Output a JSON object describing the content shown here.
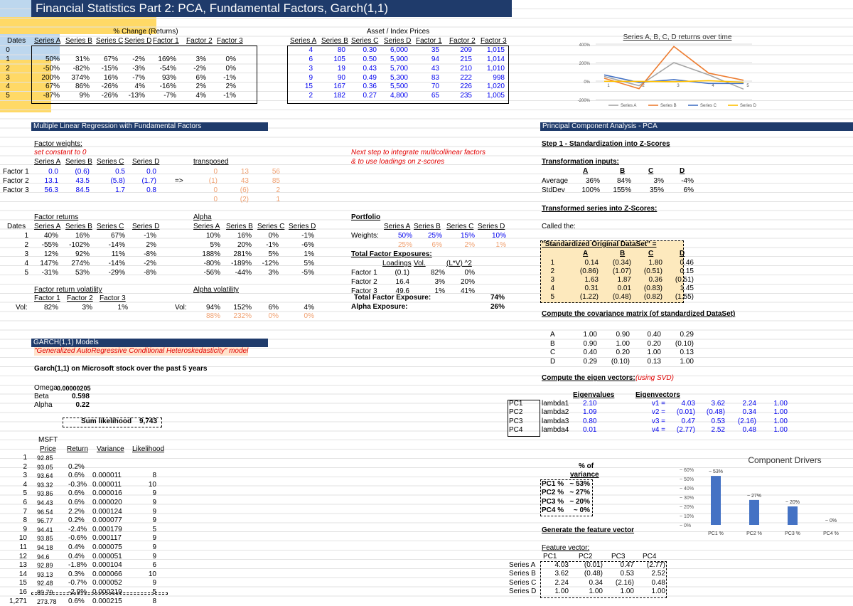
{
  "title": "Financial Statistics Part 2: PCA, Fundamental Factors, Garch(1,1)",
  "returns": {
    "header": "% Change (Returns)",
    "dates_label": "Dates",
    "columns": [
      "Series A",
      "Series B",
      "Series C",
      "Series D",
      "Factor 1",
      "Factor 2",
      "Factor 3"
    ],
    "dates": [
      "0",
      "1",
      "2",
      "3",
      "4",
      "5"
    ],
    "rows": [
      [
        "50%",
        "31%",
        "67%",
        "-2%",
        "169%",
        "3%",
        "0%"
      ],
      [
        "-50%",
        "-82%",
        "-15%",
        "-3%",
        "-54%",
        "-2%",
        "0%"
      ],
      [
        "200%",
        "374%",
        "16%",
        "-7%",
        "93%",
        "6%",
        "-1%"
      ],
      [
        "67%",
        "86%",
        "-26%",
        "4%",
        "-16%",
        "2%",
        "2%"
      ],
      [
        "-87%",
        "9%",
        "-26%",
        "-13%",
        "-7%",
        "4%",
        "-1%"
      ]
    ]
  },
  "prices": {
    "header": "Asset / Index Prices",
    "columns": [
      "Series A",
      "Series B",
      "Series C",
      "Series D",
      "Factor 1",
      "Factor 2",
      "Factor 3"
    ],
    "rows": [
      [
        "4",
        "80",
        "0.30",
        "6,000",
        "35",
        "209",
        "1,015"
      ],
      [
        "6",
        "105",
        "0.50",
        "5,900",
        "94",
        "215",
        "1,014"
      ],
      [
        "3",
        "19",
        "0.43",
        "5,700",
        "43",
        "210",
        "1,010"
      ],
      [
        "9",
        "90",
        "0.49",
        "5,300",
        "83",
        "222",
        "998"
      ],
      [
        "15",
        "167",
        "0.36",
        "5,500",
        "70",
        "226",
        "1,020"
      ],
      [
        "2",
        "182",
        "0.27",
        "4,800",
        "65",
        "235",
        "1,005"
      ]
    ]
  },
  "chart": {
    "title": "Series A, B, C, D returns over time",
    "y_ticks": [
      "400%",
      "200%",
      "0%",
      "-200%"
    ],
    "x_ticks": [
      "1",
      "2",
      "3",
      "4",
      "5"
    ],
    "legend": [
      "Series A",
      "Series B",
      "Series C",
      "Series D"
    ],
    "colors": [
      "#a5a5a5",
      "#ed7d31",
      "#4472c4",
      "#ffc000"
    ]
  },
  "chart_data": [
    {
      "type": "line",
      "title": "Series A, B, C, D returns over time",
      "categories": [
        "1",
        "2",
        "3",
        "4",
        "5"
      ],
      "ylim": [
        -200,
        400
      ],
      "series": [
        {
          "name": "Series A",
          "values": [
            50,
            -50,
            200,
            67,
            -87
          ]
        },
        {
          "name": "Series B",
          "values": [
            31,
            -82,
            374,
            86,
            9
          ]
        },
        {
          "name": "Series C",
          "values": [
            67,
            -15,
            16,
            -26,
            -26
          ]
        },
        {
          "name": "Series D",
          "values": [
            -2,
            -3,
            -7,
            4,
            -13
          ]
        }
      ],
      "legend": "bottom"
    },
    {
      "type": "bar",
      "title": "Component Drivers",
      "categories": [
        "PC1 %",
        "PC2 %",
        "PC3 %",
        "PC4 %"
      ],
      "values": [
        53,
        27,
        20,
        0
      ],
      "data_labels": [
        "~ 53%",
        "~ 27%",
        "~ 20%",
        "~ 0%"
      ],
      "y_ticks": [
        "~ 60%",
        "~ 50%",
        "~ 40%",
        "~ 30%",
        "~ 20%",
        "~ 10%",
        "~ 0%"
      ],
      "ylim": [
        0,
        60
      ]
    }
  ],
  "regression": {
    "header": "Multiple Linear Regression with Fundamental Factors",
    "weights_label": "Factor weights:",
    "weights_note": "set constant to 0",
    "columns": [
      "Series A",
      "Series B",
      "Series C",
      "Series D"
    ],
    "factors": [
      "Factor 1",
      "Factor 2",
      "Factor 3"
    ],
    "rows": [
      [
        "0.0",
        "(0.6)",
        "0.5",
        "0.0"
      ],
      [
        "13.1",
        "43.5",
        "(5.8)",
        "(1.7)"
      ],
      [
        "56.3",
        "84.5",
        "1.7",
        "0.8"
      ]
    ],
    "arrow": "=>",
    "transposed_label": "transposed",
    "transposed": [
      [
        "0",
        "13",
        "56"
      ],
      [
        "(1)",
        "43",
        "85"
      ],
      [
        "0",
        "(6)",
        "2"
      ],
      [
        "0",
        "(2)",
        "1"
      ]
    ],
    "next_step": [
      "Next step to integrate multicollinear factors",
      "& to use loadings on z-scores"
    ]
  },
  "factor_returns": {
    "label": "Factor returns",
    "dates_label": "Dates",
    "dates": [
      "1",
      "2",
      "3",
      "4",
      "5"
    ],
    "columns": [
      "Series A",
      "Series B",
      "Series C",
      "Series D"
    ],
    "rows": [
      [
        "40%",
        "16%",
        "67%",
        "-1%"
      ],
      [
        "-55%",
        "-102%",
        "-14%",
        "2%"
      ],
      [
        "12%",
        "92%",
        "11%",
        "-8%"
      ],
      [
        "147%",
        "274%",
        "-14%",
        "-2%"
      ],
      [
        "-31%",
        "53%",
        "-29%",
        "-8%"
      ]
    ],
    "vol_label": "Factor return volatility",
    "vol_columns": [
      "Factor 1",
      "Factor 2",
      "Factor 3"
    ],
    "vol_row_label": "Vol:",
    "vol_values": [
      "82%",
      "3%",
      "1%"
    ]
  },
  "alpha": {
    "label": "Alpha",
    "columns": [
      "Series A",
      "Series B",
      "Series C",
      "Series D"
    ],
    "rows": [
      [
        "10%",
        "16%",
        "0%",
        "-1%"
      ],
      [
        "5%",
        "20%",
        "-1%",
        "-6%"
      ],
      [
        "188%",
        "281%",
        "5%",
        "1%"
      ],
      [
        "-80%",
        "-189%",
        "-12%",
        "5%"
      ],
      [
        "-56%",
        "-44%",
        "3%",
        "-5%"
      ]
    ],
    "vol_label": "Alpha volatility",
    "vol_row_label": "Vol:",
    "vol_values": [
      "94%",
      "152%",
      "6%",
      "4%"
    ],
    "vol_values2": [
      "88%",
      "232%",
      "0%",
      "0%"
    ]
  },
  "portfolio": {
    "label": "Portfolio",
    "columns": [
      "Series A",
      "Series B",
      "Series C",
      "Series D"
    ],
    "weights_label": "Weights:",
    "weights": [
      "50%",
      "25%",
      "15%",
      "10%"
    ],
    "weights2": [
      "25%",
      "6%",
      "2%",
      "1%"
    ],
    "tfe_label": "Total Factor Exposures:",
    "tfe_cols": [
      "Loadings",
      "Vol.",
      "(L*V) ^2"
    ],
    "factors": [
      "Factor 1",
      "Factor 2",
      "Factor 3"
    ],
    "tfe_rows": [
      [
        "(0.1)",
        "82%",
        "0%"
      ],
      [
        "16.4",
        "3%",
        "20%"
      ],
      [
        "49.6",
        "1%",
        "41%"
      ]
    ],
    "total_label": "Total Factor Exposure:",
    "total_value": "74%",
    "alpha_label": "Alpha Exposure:",
    "alpha_value": "26%"
  },
  "garch": {
    "header": "GARCH(1,1) Models",
    "subtitle": "\"Generalized AutoRegressive Conditional Heteroskedasticity\" model",
    "intro": "Garch(1,1) on Microsoft stock over the past 5 years",
    "params": [
      [
        "Omega",
        "0.00000205"
      ],
      [
        "Beta",
        "0.598"
      ],
      [
        "Alpha",
        "0.22"
      ]
    ],
    "sum_label": "Sum likelihood",
    "sum_value": "9,743",
    "ticker": "MSFT",
    "cols": [
      "Price",
      "Return",
      "Variance",
      "Likelihood"
    ],
    "rownums": [
      "1",
      "2",
      "3",
      "4",
      "5",
      "6",
      "7",
      "8",
      "9",
      "10",
      "11",
      "12",
      "13",
      "14",
      "15",
      "16",
      "1,271"
    ],
    "rows": [
      [
        "92.85",
        "",
        "",
        ""
      ],
      [
        "93.05",
        "0.2%",
        "",
        ""
      ],
      [
        "93.64",
        "0.6%",
        "0.000011",
        "8"
      ],
      [
        "93.32",
        "-0.3%",
        "0.000011",
        "10"
      ],
      [
        "93.86",
        "0.6%",
        "0.000016",
        "9"
      ],
      [
        "94.43",
        "0.6%",
        "0.000020",
        "9"
      ],
      [
        "96.54",
        "2.2%",
        "0.000124",
        "9"
      ],
      [
        "96.77",
        "0.2%",
        "0.000077",
        "9"
      ],
      [
        "94.41",
        "-2.4%",
        "0.000179",
        "5"
      ],
      [
        "93.85",
        "-0.6%",
        "0.000117",
        "9"
      ],
      [
        "94.18",
        "0.4%",
        "0.000075",
        "9"
      ],
      [
        "94.6",
        "0.4%",
        "0.000051",
        "9"
      ],
      [
        "92.89",
        "-1.8%",
        "0.000104",
        "6"
      ],
      [
        "93.13",
        "0.3%",
        "0.000066",
        "10"
      ],
      [
        "92.48",
        "-0.7%",
        "0.000052",
        "9"
      ],
      [
        "89.79",
        "-2.9%",
        "0.000219",
        "5"
      ],
      [
        "273.78",
        "0.6%",
        "0.000215",
        "8"
      ]
    ]
  },
  "pca": {
    "header": "Principal Component Analysis - PCA",
    "step1": "Step 1 - Standardization into Z-Scores",
    "trans_label": "Transformation inputs:",
    "cols": [
      "A",
      "B",
      "C",
      "D"
    ],
    "avg_label": "Average",
    "avg": [
      "36%",
      "84%",
      "3%",
      "-4%"
    ],
    "std_label": "StdDev",
    "std": [
      "100%",
      "155%",
      "35%",
      "6%"
    ],
    "transformed_label": "Transformed series into Z-Scores:",
    "called": "Called the:",
    "sods_label": "\"Standardized Original DataSet\" =",
    "z_rows": [
      [
        "1",
        "0.14",
        "(0.34)",
        "1.80",
        "0.46"
      ],
      [
        "2",
        "(0.86)",
        "(1.07)",
        "(0.51)",
        "0.15"
      ],
      [
        "3",
        "1.63",
        "1.87",
        "0.36",
        "(0.51)"
      ],
      [
        "4",
        "0.31",
        "0.01",
        "(0.83)",
        "1.45"
      ],
      [
        "5",
        "(1.22)",
        "(0.48)",
        "(0.82)",
        "(1.55)"
      ]
    ],
    "cov_label": "Compute the covariance matrix (of standardized DataSet)",
    "cov_rows": [
      [
        "A",
        "1.00",
        "0.90",
        "0.40",
        "0.29"
      ],
      [
        "B",
        "0.90",
        "1.00",
        "0.20",
        "(0.10)"
      ],
      [
        "C",
        "0.40",
        "0.20",
        "1.00",
        "0.13"
      ],
      [
        "D",
        "0.29",
        "(0.10)",
        "0.13",
        "1.00"
      ]
    ],
    "eig_label": "Compute the eigen vectors:",
    "eig_note": "(using SVD)",
    "eigenvalues_label": "Eigenvalues",
    "eigenvectors_label": "Eigenvectors",
    "pcs": [
      "PC1",
      "PC2",
      "PC3",
      "PC4"
    ],
    "lambdas": [
      [
        "lambda1",
        "2.10"
      ],
      [
        "lambda2",
        "1.09"
      ],
      [
        "lambda3",
        "0.80"
      ],
      [
        "lambda4",
        "0.01"
      ]
    ],
    "vecs": [
      [
        "v1 =",
        "4.03",
        "3.62",
        "2.24",
        "1.00"
      ],
      [
        "v2 =",
        "(0.01)",
        "(0.48)",
        "0.34",
        "1.00"
      ],
      [
        "v3 =",
        "0.47",
        "0.53",
        "(2.16)",
        "1.00"
      ],
      [
        "v4 =",
        "(2.77)",
        "2.52",
        "0.48",
        "1.00"
      ]
    ],
    "variance_label": [
      "% of",
      "variance"
    ],
    "variance_rows": [
      [
        "PC1 %",
        "~ 53%"
      ],
      [
        "PC2 %",
        "~ 27%"
      ],
      [
        "PC3 %",
        "~ 20%"
      ],
      [
        "PC4 %",
        "~ 0%"
      ]
    ],
    "feature_label": "Generate the feature vector",
    "fv_label": "Feature vector:",
    "fv_cols": [
      "PC1",
      "PC2",
      "PC3",
      "PC4"
    ],
    "fv_rows": [
      [
        "Series A",
        "4.03",
        "(0.01)",
        "0.47",
        "(2.77)"
      ],
      [
        "Series B",
        "3.62",
        "(0.48)",
        "0.53",
        "2.52"
      ],
      [
        "Series C",
        "2.24",
        "0.34",
        "(2.16)",
        "0.48"
      ],
      [
        "Series D",
        "1.00",
        "1.00",
        "1.00",
        "1.00"
      ]
    ]
  }
}
